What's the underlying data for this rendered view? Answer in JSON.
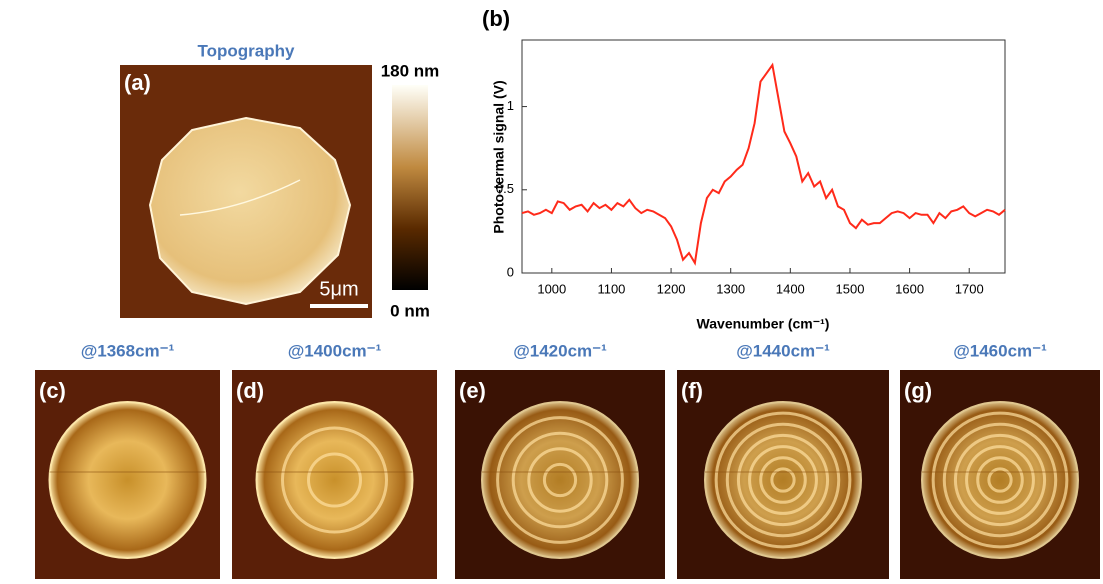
{
  "topography": {
    "title": "Topography",
    "label": "(a)",
    "colorbar_max": "180 nm",
    "colorbar_min": "0 nm",
    "scale_bar": "5μm"
  },
  "maps": [
    {
      "label": "(c)",
      "title": "@1368cm⁻¹"
    },
    {
      "label": "(d)",
      "title": "@1400cm⁻¹"
    },
    {
      "label": "(e)",
      "title": "@1420cm⁻¹"
    },
    {
      "label": "(f)",
      "title": "@1440cm⁻¹"
    },
    {
      "label": "(g)",
      "title": "@1460cm⁻¹"
    }
  ],
  "chart_data": {
    "type": "line",
    "label": "(b)",
    "xlabel": "Wavenumber (cm⁻¹)",
    "ylabel": "Photo-termal signal (V)",
    "color": "#ff2a1a",
    "xlim": [
      950,
      1760
    ],
    "ylim": [
      0,
      1.4
    ],
    "xticks": [
      1000,
      1100,
      1200,
      1300,
      1400,
      1500,
      1600,
      1700
    ],
    "yticks": [
      0,
      0.5,
      1
    ],
    "x": [
      950,
      960,
      970,
      980,
      990,
      1000,
      1010,
      1020,
      1030,
      1040,
      1050,
      1060,
      1070,
      1080,
      1090,
      1100,
      1110,
      1120,
      1130,
      1140,
      1150,
      1160,
      1170,
      1180,
      1190,
      1200,
      1210,
      1220,
      1230,
      1240,
      1250,
      1260,
      1270,
      1280,
      1290,
      1300,
      1310,
      1320,
      1330,
      1340,
      1350,
      1360,
      1370,
      1380,
      1390,
      1400,
      1410,
      1420,
      1430,
      1440,
      1450,
      1460,
      1470,
      1480,
      1490,
      1500,
      1510,
      1520,
      1530,
      1540,
      1550,
      1560,
      1570,
      1580,
      1590,
      1600,
      1610,
      1620,
      1630,
      1640,
      1650,
      1660,
      1670,
      1680,
      1690,
      1700,
      1710,
      1720,
      1730,
      1740,
      1750,
      1760
    ],
    "values": [
      0.36,
      0.37,
      0.35,
      0.36,
      0.38,
      0.36,
      0.43,
      0.42,
      0.38,
      0.4,
      0.41,
      0.37,
      0.42,
      0.39,
      0.41,
      0.38,
      0.42,
      0.4,
      0.44,
      0.39,
      0.36,
      0.38,
      0.37,
      0.35,
      0.33,
      0.28,
      0.2,
      0.08,
      0.12,
      0.06,
      0.3,
      0.45,
      0.5,
      0.48,
      0.55,
      0.58,
      0.62,
      0.65,
      0.75,
      0.9,
      1.15,
      1.2,
      1.25,
      1.05,
      0.85,
      0.78,
      0.7,
      0.55,
      0.6,
      0.52,
      0.55,
      0.45,
      0.5,
      0.4,
      0.38,
      0.3,
      0.27,
      0.32,
      0.29,
      0.3,
      0.3,
      0.33,
      0.36,
      0.37,
      0.36,
      0.33,
      0.36,
      0.35,
      0.35,
      0.3,
      0.36,
      0.33,
      0.37,
      0.38,
      0.4,
      0.36,
      0.34,
      0.36,
      0.38,
      0.37,
      0.35,
      0.38
    ]
  }
}
